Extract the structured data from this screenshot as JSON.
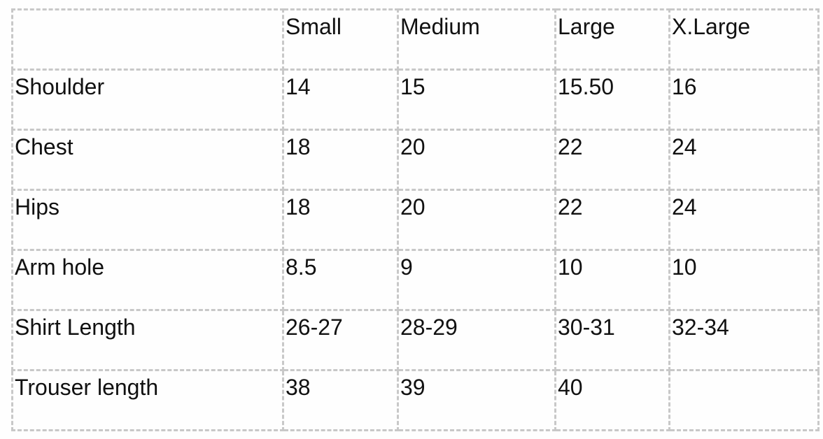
{
  "table": {
    "headers": [
      "",
      "Small",
      "Medium",
      "Large",
      "X.Large"
    ],
    "rows": [
      [
        "Shoulder",
        "14",
        "15",
        "15.50",
        "16"
      ],
      [
        "Chest",
        "18",
        "20",
        "22",
        "24"
      ],
      [
        "Hips",
        "18",
        "20",
        "22",
        "24"
      ],
      [
        "Arm hole",
        "8.5",
        "9",
        "10",
        "10"
      ],
      [
        "Shirt Length",
        "26-27",
        "28-29",
        "30-31",
        "32-34"
      ],
      [
        "Trouser length",
        "38",
        "39",
        "40",
        ""
      ]
    ]
  }
}
